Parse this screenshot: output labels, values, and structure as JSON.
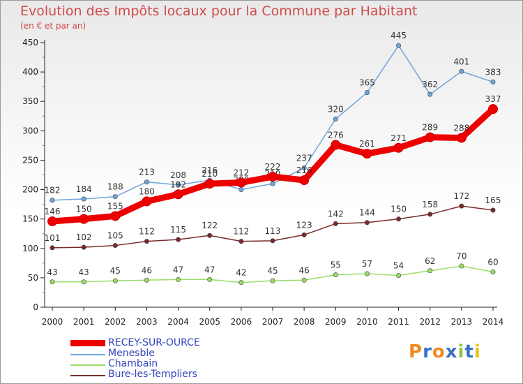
{
  "title": "Evolution des Impôts locaux pour la Commune par Habitant",
  "subtitle": "(en € et par an)",
  "logo_text": "Proxiti",
  "chart_data": {
    "type": "line",
    "x": [
      "2000",
      "2001",
      "2002",
      "2003",
      "2004",
      "2005",
      "2006",
      "2007",
      "2008",
      "2009",
      "2010",
      "2011",
      "2012",
      "2013",
      "2014"
    ],
    "ylim": [
      0,
      450
    ],
    "yticks": [
      0,
      50,
      100,
      150,
      200,
      250,
      300,
      350,
      400,
      450
    ],
    "grid": false,
    "legend_position": "bottom-left",
    "series": [
      {
        "name": "RECEY-SUR-OURCE",
        "color": "#ee0000",
        "values": [
          146,
          150,
          155,
          180,
          192,
          210,
          212,
          222,
          216,
          276,
          261,
          271,
          289,
          288,
          337
        ],
        "labels": [
          "146",
          "150",
          "155",
          "180",
          "192",
          "210",
          "212",
          "222",
          "216",
          "276",
          "261",
          "271",
          "289",
          "288",
          "337"
        ]
      },
      {
        "name": "Menesble",
        "color": "#6fa5dc",
        "values": [
          182,
          184,
          188,
          213,
          208,
          216,
          200,
          210,
          237,
          320,
          365,
          445,
          362,
          401,
          383
        ],
        "labels": [
          "182",
          "184",
          "188",
          "213",
          "208",
          "216",
          "200",
          "210",
          "237",
          "320",
          "365",
          "445",
          "362",
          "401",
          "383"
        ]
      },
      {
        "name": "Chambain",
        "color": "#99dd66",
        "values": [
          43,
          43,
          45,
          46,
          47,
          47,
          42,
          45,
          46,
          55,
          57,
          54,
          62,
          70,
          60
        ],
        "labels": [
          "43",
          "43",
          "45",
          "46",
          "47",
          "47",
          "42",
          "45",
          "46",
          "55",
          "57",
          "54",
          "62",
          "70",
          "60"
        ]
      },
      {
        "name": "Bure-les-Templiers",
        "color": "#7a2a2a",
        "values": [
          101,
          102,
          105,
          112,
          115,
          122,
          112,
          113,
          123,
          142,
          144,
          150,
          158,
          172,
          165
        ],
        "labels": [
          "101",
          "102",
          "105",
          "112",
          "115",
          "122",
          "112",
          "113",
          "123",
          "142",
          "144",
          "150",
          "158",
          "172",
          "165"
        ]
      }
    ]
  }
}
